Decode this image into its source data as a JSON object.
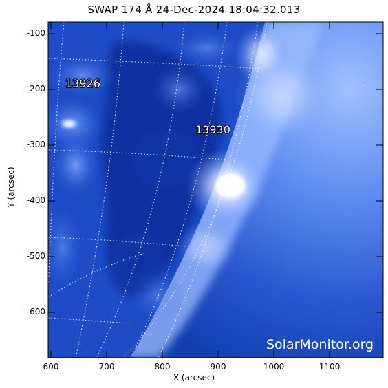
{
  "figure": {
    "title": "SWAP 174 Å 24-Dec-2024 18:04:32.013",
    "x_axis_label": "X (arcsec)",
    "y_axis_label": "Y (arcsec)",
    "x_ticks": [
      "600",
      "700",
      "800",
      "900",
      "1000",
      "1100"
    ],
    "y_ticks": [
      "-100",
      "-200",
      "-300",
      "-400",
      "-500",
      "-600"
    ],
    "x_range": [
      595,
      1195
    ],
    "y_range": [
      -680,
      -80
    ],
    "active_regions": [
      {
        "label": "13926",
        "x": 665,
        "y": -190
      },
      {
        "label": "13930",
        "x": 898,
        "y": -270
      }
    ],
    "watermark": "SolarMonitor.org",
    "colors": {
      "background_dark": "#0a2d9c",
      "corona_mid": "#2f64d8",
      "corona_bright": "#cfe0ff",
      "grid": "#ffffff",
      "axis": "#000000"
    }
  }
}
